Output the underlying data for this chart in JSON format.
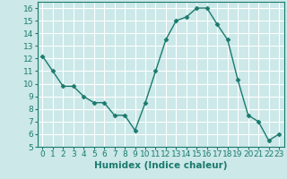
{
  "x": [
    0,
    1,
    2,
    3,
    4,
    5,
    6,
    7,
    8,
    9,
    10,
    11,
    12,
    13,
    14,
    15,
    16,
    17,
    18,
    19,
    20,
    21,
    22,
    23
  ],
  "y": [
    12.2,
    11.0,
    9.8,
    9.8,
    9.0,
    8.5,
    8.5,
    7.5,
    7.5,
    6.3,
    8.5,
    11.0,
    13.5,
    15.0,
    15.3,
    16.0,
    16.0,
    14.7,
    13.5,
    10.3,
    7.5,
    7.0,
    5.5,
    6.0
  ],
  "line_color": "#1a7a6e",
  "marker": "D",
  "markersize": 2.5,
  "linewidth": 1.0,
  "xlabel": "Humidex (Indice chaleur)",
  "xlim": [
    -0.5,
    23.5
  ],
  "ylim": [
    5,
    16.5
  ],
  "yticks": [
    5,
    6,
    7,
    8,
    9,
    10,
    11,
    12,
    13,
    14,
    15,
    16
  ],
  "xticks": [
    0,
    1,
    2,
    3,
    4,
    5,
    6,
    7,
    8,
    9,
    10,
    11,
    12,
    13,
    14,
    15,
    16,
    17,
    18,
    19,
    20,
    21,
    22,
    23
  ],
  "bg_color": "#cce8e8",
  "grid_color": "#ffffff",
  "tick_color": "#1a7a6e",
  "tick_fontsize": 6.5,
  "xlabel_fontsize": 7.5
}
